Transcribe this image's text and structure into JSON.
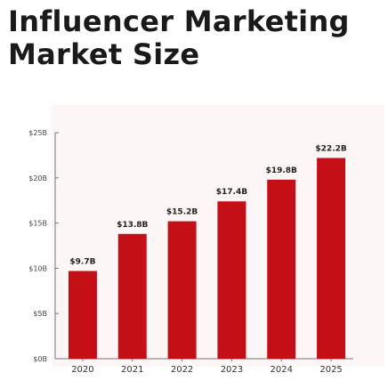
{
  "title": "Influencer Marketing Market Size",
  "colors": {
    "bar": "#c40f16",
    "background_band": "#fdf6f6",
    "axis": "#777777"
  },
  "chart_data": {
    "type": "bar",
    "title": "Influencer Marketing Market Size",
    "xlabel": "",
    "ylabel": "",
    "categories": [
      "2020",
      "2021",
      "2022",
      "2023",
      "2024",
      "2025"
    ],
    "values": [
      9.7,
      13.8,
      15.2,
      17.4,
      19.8,
      22.2
    ],
    "data_labels": [
      "$9.7B",
      "$13.8B",
      "$15.2B",
      "$17.4B",
      "$19.8B",
      "$22.2B"
    ],
    "ylim": [
      0,
      25
    ],
    "yticks": [
      0,
      5,
      10,
      15,
      20,
      25
    ],
    "ytick_labels": [
      "$0B",
      "$5B",
      "$10B",
      "$15B",
      "$20B",
      "$25B"
    ],
    "grid": false,
    "legend": "none"
  }
}
